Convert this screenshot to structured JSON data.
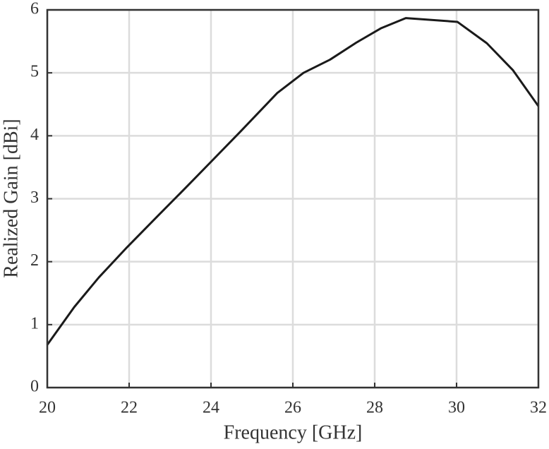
{
  "chart_data": {
    "type": "line",
    "x_label": "Frequency [GHz]",
    "y_label": "Realized Gain [dBi]",
    "x": [
      20,
      20.66,
      21.26,
      21.95,
      22.72,
      23.36,
      24.02,
      24.71,
      25.62,
      26.26,
      26.91,
      27.55,
      28.16,
      28.76,
      30.02,
      30.74,
      31.38,
      32
    ],
    "series": [
      {
        "color": "#1a1a1a",
        "values": [
          0.68,
          1.28,
          1.75,
          2.23,
          2.74,
          3.16,
          3.6,
          4.06,
          4.68,
          5.0,
          5.21,
          5.48,
          5.71,
          5.87,
          5.81,
          5.47,
          5.04,
          4.47
        ]
      }
    ],
    "xlim": [
      20,
      32
    ],
    "xticks": [
      20,
      22,
      24,
      26,
      28,
      30,
      32
    ],
    "ylim": [
      0,
      6
    ],
    "yticks": [
      0,
      1,
      2,
      3,
      4,
      5,
      6
    ],
    "grid": true
  }
}
